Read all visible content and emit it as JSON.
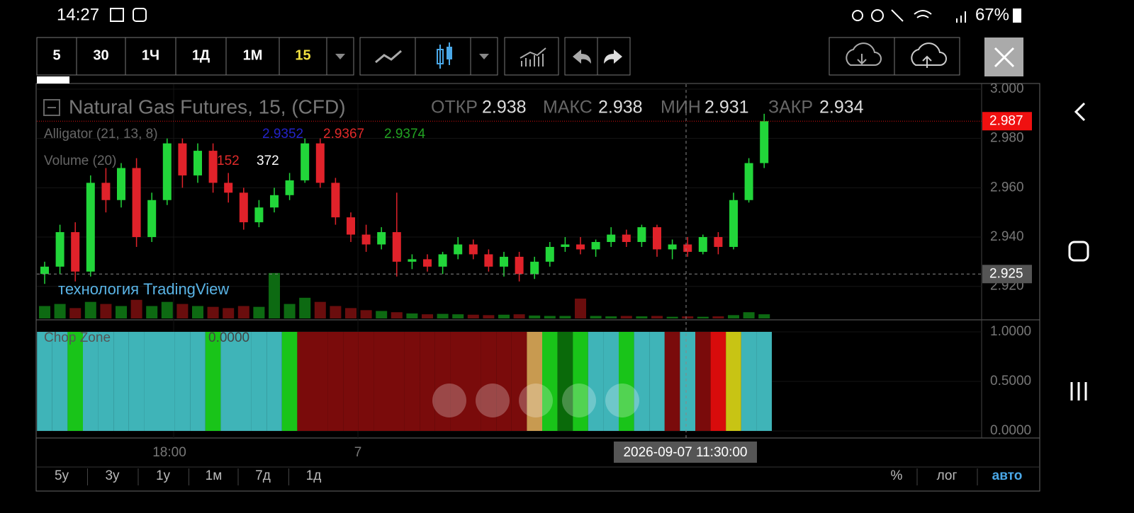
{
  "status_bar": {
    "time": "14:27",
    "battery": "67%"
  },
  "toolbar": {
    "intervals": [
      "5",
      "30",
      "1Ч",
      "1Д",
      "1М",
      "15"
    ]
  },
  "chart_data": {
    "type": "candlestick",
    "title": "Natural Gas Futures, 15, (CFD)",
    "ohlc_legend": [
      {
        "label": "ОТКР",
        "value": 2.938
      },
      {
        "label": "МАКС",
        "value": 2.938
      },
      {
        "label": "МИН",
        "value": 2.931
      },
      {
        "label": "ЗАКР",
        "value": 2.934
      }
    ],
    "alligator": {
      "name": "Alligator (21, 13, 8)",
      "values": [
        2.9352,
        2.9367,
        2.9374
      ],
      "colors": [
        "#2323c8",
        "#e02a2a",
        "#22a322"
      ]
    },
    "volume_legend": {
      "name": "Volume (20)",
      "values": [
        152,
        372
      ],
      "colors": [
        "#e02a2a",
        "#ffffff"
      ]
    },
    "watermark": "технология TradingView",
    "ylim": [
      2.907,
      3.002
    ],
    "yticks": [
      {
        "value": 3,
        "label": "3.000"
      },
      {
        "value": 2.98,
        "label": "2.980"
      },
      {
        "value": 2.96,
        "label": "2.960"
      },
      {
        "value": 2.94,
        "label": "2.940"
      },
      {
        "value": 2.92,
        "label": "2.920"
      }
    ],
    "last_price": 2.987,
    "crosshair": {
      "price": 2.925,
      "time": "2026-09-07 11:30:00"
    },
    "x_labels": [
      "18:00",
      "7"
    ],
    "up_color": "#22d63a",
    "down_color": "#e0222a",
    "ohlc": [
      [
        2.925,
        2.93,
        2.921,
        2.928
      ],
      [
        2.928,
        2.945,
        2.925,
        2.942
      ],
      [
        2.942,
        2.946,
        2.922,
        2.926
      ],
      [
        2.926,
        2.965,
        2.924,
        2.962
      ],
      [
        2.962,
        2.968,
        2.95,
        2.955
      ],
      [
        2.955,
        2.97,
        2.952,
        2.968
      ],
      [
        2.968,
        2.972,
        2.936,
        2.94
      ],
      [
        2.94,
        2.958,
        2.938,
        2.955
      ],
      [
        2.955,
        2.98,
        2.953,
        2.978
      ],
      [
        2.978,
        2.98,
        2.96,
        2.965
      ],
      [
        2.965,
        2.978,
        2.962,
        2.975
      ],
      [
        2.975,
        2.978,
        2.958,
        2.962
      ],
      [
        2.962,
        2.966,
        2.954,
        2.958
      ],
      [
        2.958,
        2.96,
        2.943,
        2.946
      ],
      [
        2.946,
        2.955,
        2.944,
        2.952
      ],
      [
        2.952,
        2.96,
        2.95,
        2.957
      ],
      [
        2.957,
        2.966,
        2.955,
        2.963
      ],
      [
        2.963,
        2.98,
        2.962,
        2.978
      ],
      [
        2.978,
        2.98,
        2.96,
        2.962
      ],
      [
        2.962,
        2.964,
        2.945,
        2.948
      ],
      [
        2.948,
        2.95,
        2.938,
        2.941
      ],
      [
        2.941,
        2.945,
        2.934,
        2.937
      ],
      [
        2.937,
        2.944,
        2.935,
        2.942
      ],
      [
        2.942,
        2.958,
        2.924,
        2.93
      ],
      [
        2.93,
        2.933,
        2.927,
        2.931
      ],
      [
        2.931,
        2.933,
        2.926,
        2.928
      ],
      [
        2.928,
        2.934,
        2.925,
        2.933
      ],
      [
        2.933,
        2.94,
        2.931,
        2.937
      ],
      [
        2.937,
        2.939,
        2.931,
        2.933
      ],
      [
        2.933,
        2.935,
        2.926,
        2.928
      ],
      [
        2.928,
        2.934,
        2.924,
        2.932
      ],
      [
        2.932,
        2.934,
        2.922,
        2.925
      ],
      [
        2.925,
        2.932,
        2.923,
        2.93
      ],
      [
        2.93,
        2.938,
        2.928,
        2.936
      ],
      [
        2.936,
        2.94,
        2.934,
        2.937
      ],
      [
        2.937,
        2.94,
        2.933,
        2.935
      ],
      [
        2.935,
        2.939,
        2.932,
        2.938
      ],
      [
        2.938,
        2.944,
        2.936,
        2.941
      ],
      [
        2.941,
        2.943,
        2.936,
        2.938
      ],
      [
        2.938,
        2.945,
        2.936,
        2.944
      ],
      [
        2.944,
        2.945,
        2.932,
        2.935
      ],
      [
        2.935,
        2.939,
        2.931,
        2.937
      ],
      [
        2.937,
        2.94,
        2.932,
        2.934
      ],
      [
        2.934,
        2.941,
        2.933,
        2.94
      ],
      [
        2.94,
        2.942,
        2.933,
        2.936
      ],
      [
        2.936,
        2.958,
        2.935,
        2.955
      ],
      [
        2.955,
        2.972,
        2.954,
        2.97
      ],
      [
        2.97,
        2.99,
        2.968,
        2.987
      ]
    ],
    "volume": [
      300,
      350,
      250,
      400,
      350,
      300,
      450,
      300,
      400,
      350,
      300,
      280,
      250,
      300,
      280,
      1100,
      350,
      500,
      400,
      300,
      250,
      200,
      180,
      150,
      120,
      100,
      110,
      100,
      90,
      80,
      90,
      100,
      70,
      60,
      60,
      480,
      60,
      50,
      60,
      50,
      60,
      40,
      50,
      40,
      50,
      80,
      150,
      100
    ],
    "volume_ylim": [
      0,
      1200
    ],
    "chop_zone": {
      "name": "Chop Zone",
      "reading": {
        "value": 0,
        "label": "0.0000"
      },
      "ylim": [
        0,
        1
      ],
      "yticks": [
        {
          "value": 1,
          "label": "1.0000"
        },
        {
          "value": 0.5,
          "label": "0.5000"
        },
        {
          "value": 0,
          "label": "0.0000"
        }
      ],
      "values": [
        1,
        1,
        1,
        1,
        1,
        1,
        1,
        1,
        1,
        1,
        1,
        1,
        1,
        1,
        1,
        1,
        1,
        1,
        1,
        1,
        1,
        1,
        1,
        1,
        1,
        1,
        1,
        1,
        1,
        1,
        1,
        1,
        1,
        1,
        1,
        1,
        1,
        1,
        1,
        1,
        1,
        1,
        1,
        1,
        1,
        1,
        1,
        1
      ],
      "colors": [
        "#3fb4b8",
        "#3fb4b8",
        "#19c419",
        "#3fb4b8",
        "#3fb4b8",
        "#3fb4b8",
        "#3fb4b8",
        "#3fb4b8",
        "#3fb4b8",
        "#3fb4b8",
        "#3fb4b8",
        "#19c419",
        "#3fb4b8",
        "#3fb4b8",
        "#3fb4b8",
        "#3fb4b8",
        "#19c419",
        "#7a0b0b",
        "#7a0b0b",
        "#7a0b0b",
        "#7a0b0b",
        "#7a0b0b",
        "#7a0b0b",
        "#7a0b0b",
        "#7a0b0b",
        "#7a0b0b",
        "#7a0b0b",
        "#7a0b0b",
        "#7a0b0b",
        "#7a0b0b",
        "#7a0b0b",
        "#7a0b0b",
        "#c89a50",
        "#19c419",
        "#0a6a0a",
        "#19c419",
        "#3fb4b8",
        "#3fb4b8",
        "#19c419",
        "#3fb4b8",
        "#3fb4b8",
        "#7a0b0b",
        "#3fb4b8",
        "#7a0b0b",
        "#d80c0c",
        "#c8c414",
        "#3fb4b8",
        "#3fb4b8"
      ]
    }
  },
  "range_bar": {
    "ranges": [
      "5у",
      "3у",
      "1у",
      "1м",
      "7д",
      "1д"
    ],
    "scale_options": [
      "%",
      "лог",
      "авто"
    ]
  }
}
